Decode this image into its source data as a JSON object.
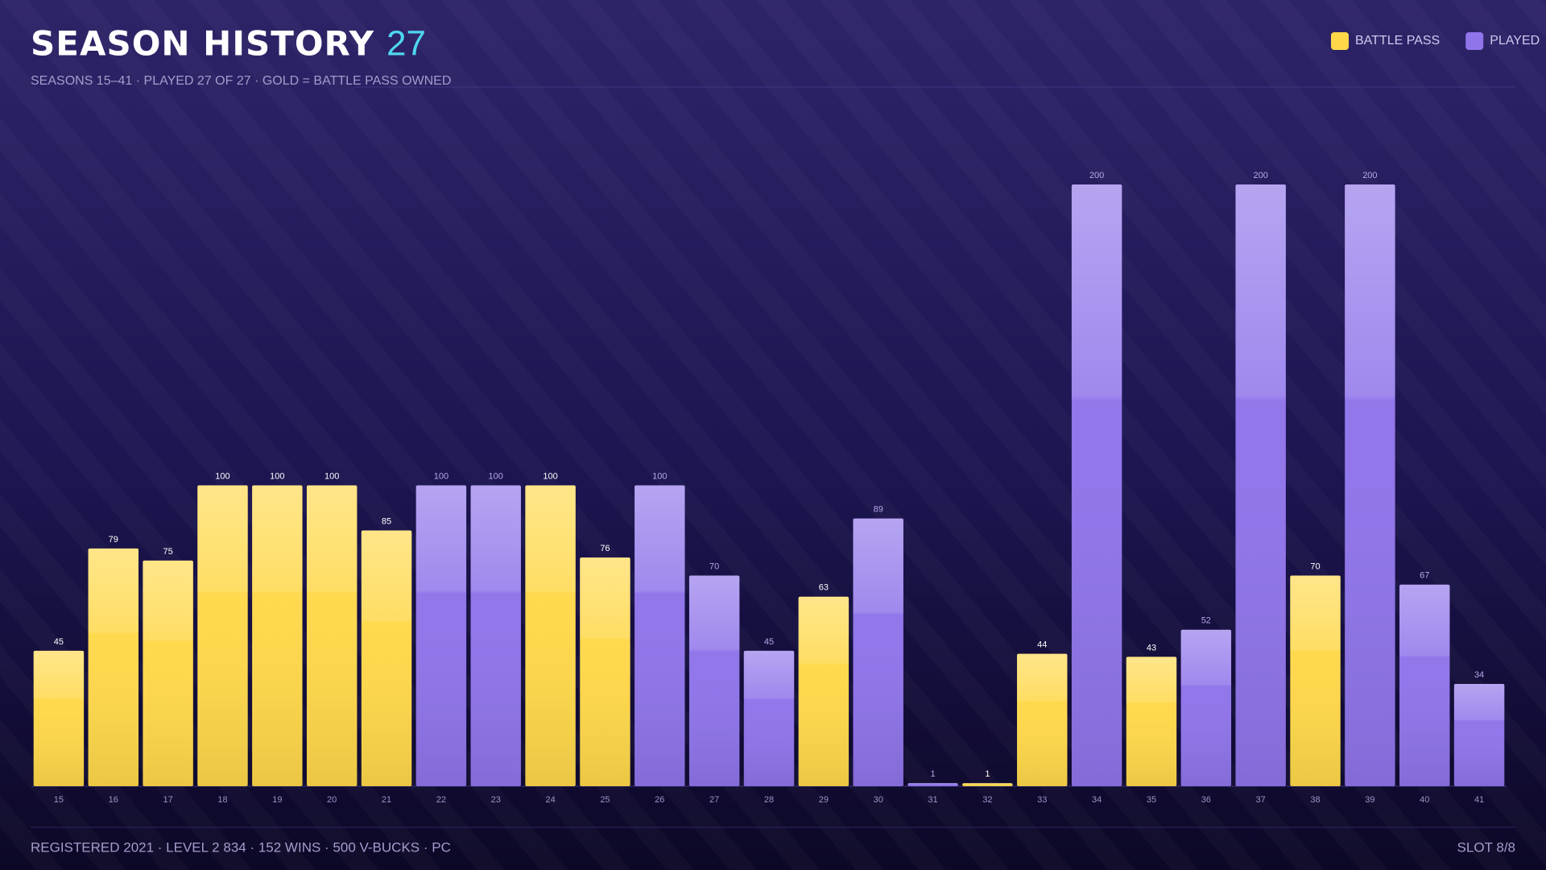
{
  "chart_data": {
    "type": "bar",
    "title": "SEASON HISTORY",
    "title_count": "27",
    "subtitle": "SEASONS 15–41 · PLAYED 27 OF 27 · GOLD = BATTLE PASS OWNED",
    "categories": [
      "15",
      "16",
      "17",
      "18",
      "19",
      "20",
      "21",
      "22",
      "23",
      "24",
      "25",
      "26",
      "27",
      "28",
      "29",
      "30",
      "31",
      "32",
      "33",
      "34",
      "35",
      "36",
      "37",
      "38",
      "39",
      "40",
      "41"
    ],
    "series": [
      {
        "name": "BATTLE PASS",
        "color": "#ffd84a",
        "values": [
          45,
          79,
          75,
          100,
          100,
          100,
          85,
          null,
          null,
          100,
          76,
          null,
          null,
          null,
          63,
          null,
          null,
          1,
          44,
          null,
          43,
          null,
          null,
          70,
          null,
          null,
          null
        ]
      },
      {
        "name": "PLAYED",
        "color": "#8f74ea",
        "values": [
          null,
          null,
          null,
          null,
          null,
          null,
          null,
          100,
          100,
          null,
          null,
          100,
          70,
          45,
          null,
          89,
          1,
          null,
          null,
          200,
          null,
          52,
          200,
          null,
          200,
          67,
          34
        ]
      }
    ],
    "legend": "top-right",
    "footer": "REGISTERED 2021 · LEVEL 2 834 · 152 WINS · 500 V-BUCKS · PC",
    "slot": "SLOT 8/8"
  }
}
